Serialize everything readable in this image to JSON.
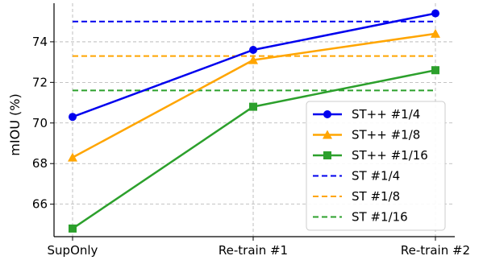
{
  "chart_data": {
    "type": "line",
    "categories": [
      "SupOnly",
      "Re-train #1",
      "Re-train #2"
    ],
    "ylabel": "mIOU (%)",
    "xlabel": "",
    "ylim": [
      64.4,
      75.9
    ],
    "yticks": [
      66,
      68,
      70,
      72,
      74
    ],
    "grid": true,
    "legend_position": "lower-right",
    "series": [
      {
        "name": "ST++ #1/4",
        "values": [
          70.3,
          73.6,
          75.4
        ],
        "color": "#0000ee",
        "marker": "circle",
        "style": "solid"
      },
      {
        "name": "ST++ #1/8",
        "values": [
          68.3,
          73.1,
          74.4
        ],
        "color": "#ffa500",
        "marker": "triangle",
        "style": "solid"
      },
      {
        "name": "ST++ #1/16",
        "values": [
          64.8,
          70.8,
          72.6
        ],
        "color": "#2ca02c",
        "marker": "square",
        "style": "solid"
      },
      {
        "name": "ST #1/4",
        "value": 75.0,
        "color": "#0000ee",
        "style": "dashed"
      },
      {
        "name": "ST #1/8",
        "value": 73.3,
        "color": "#ffa500",
        "style": "dashed"
      },
      {
        "name": "ST #1/16",
        "value": 71.6,
        "color": "#2ca02c",
        "style": "dashed"
      }
    ]
  }
}
